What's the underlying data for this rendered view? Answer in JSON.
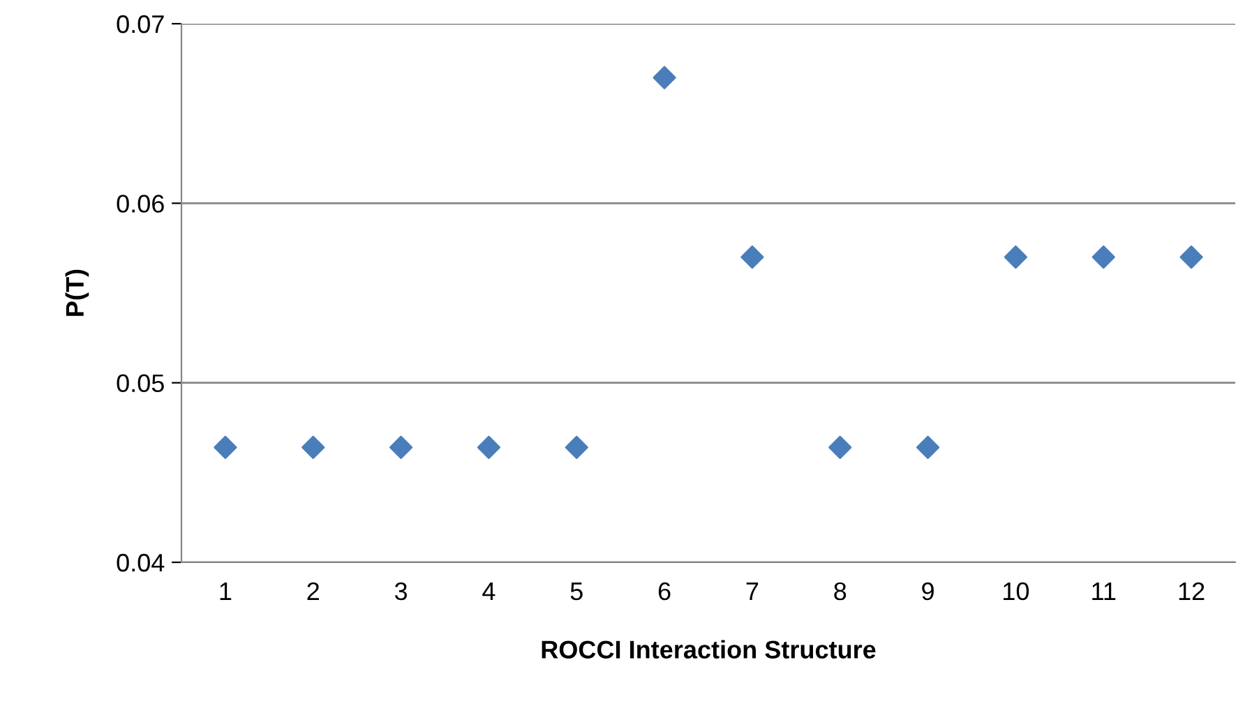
{
  "chart_data": {
    "type": "scatter",
    "xlabel": "ROCCI Interaction Structure",
    "ylabel": "P(T)",
    "categories": [
      "1",
      "2",
      "3",
      "4",
      "5",
      "6",
      "7",
      "8",
      "9",
      "10",
      "11",
      "12"
    ],
    "series": [
      {
        "color": "#4a7ebb",
        "values": [
          0.0464,
          0.0464,
          0.0464,
          0.0464,
          0.0464,
          0.067,
          0.057,
          0.0464,
          0.0464,
          0.057,
          0.057,
          0.057
        ]
      }
    ],
    "ylim": [
      0.04,
      0.07
    ],
    "yticks": [
      0.04,
      0.05,
      0.06,
      0.07
    ],
    "grid": "y",
    "marker": "diamond",
    "legend": false
  }
}
